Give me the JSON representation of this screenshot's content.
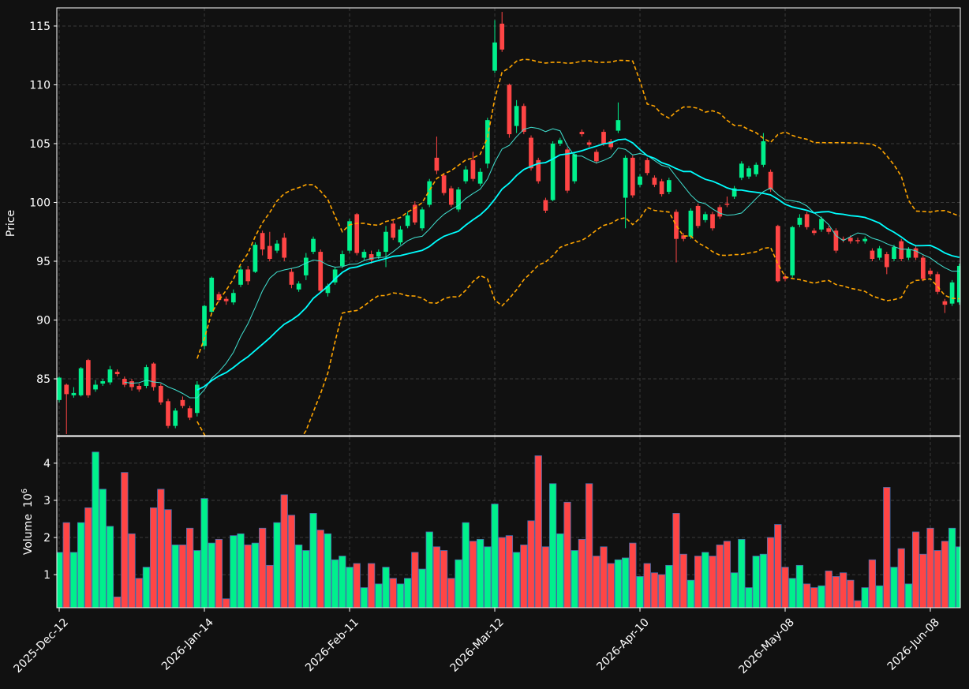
{
  "chart_data": {
    "type": "candlestick",
    "up_color": "#00f08c",
    "down_color": "#ff4545",
    "ylabel": "Price",
    "volume_label": "Volume",
    "volume_scale": {
      "base": "10",
      "exponent": "6"
    },
    "xlim": [
      -0.33,
      124.13
    ],
    "xticks": [
      {
        "value": 0,
        "label": "2025-Dec-12"
      },
      {
        "value": 20,
        "label": "2026-Jan-14"
      },
      {
        "value": 40,
        "label": "2026-Feb-11"
      },
      {
        "value": 60,
        "label": "2026-Mar-12"
      },
      {
        "value": 80,
        "label": "2026-Apr-10"
      },
      {
        "value": 100,
        "label": "2026-May-08"
      },
      {
        "value": 120,
        "label": "2026-Jun-08"
      }
    ],
    "ylim": [
      80.17,
      116.54
    ],
    "yticks": [
      85,
      90,
      95,
      100,
      105,
      110,
      115
    ],
    "volume_ylim": [
      0.11,
      4.72
    ],
    "volume_yticks": [
      1,
      2,
      3,
      4
    ],
    "grid": true,
    "indicators": {
      "moving_averages": [
        {
          "window": 10,
          "color": "#40e0d0"
        },
        {
          "window": 20,
          "color": "#00ffff"
        }
      ],
      "bollinger": {
        "window": 20,
        "std": 2,
        "color": "#ffa500"
      }
    },
    "open": [
      83.2,
      84.5,
      83.6,
      83.6,
      86.6,
      84.1,
      84.6,
      84.7,
      85.6,
      85.0,
      84.8,
      84.4,
      84.4,
      86.3,
      84.4,
      83.1,
      81.0,
      83.2,
      82.5,
      82.1,
      87.8,
      90.7,
      92.2,
      91.8,
      91.5,
      93.0,
      94.3,
      94.1,
      97.4,
      96.3,
      95.9,
      97.0,
      94.1,
      92.6,
      93.8,
      95.8,
      95.8,
      92.3,
      93.2,
      94.6,
      95.9,
      99.0,
      95.3,
      95.6,
      95.4,
      95.8,
      98.2,
      96.6,
      98.0,
      99.8,
      97.8,
      99.8,
      103.8,
      102.3,
      101.2,
      99.4,
      101.8,
      103.6,
      101.6,
      103.3,
      111.2,
      115.2,
      110.0,
      106.5,
      108.2,
      105.5,
      103.6,
      100.2,
      100.2,
      105.0,
      104.5,
      101.8,
      106.0,
      105.1,
      104.3,
      106.0,
      105.2,
      106.1,
      100.4,
      103.8,
      101.5,
      103.6,
      102.1,
      101.8,
      100.9,
      99.2,
      97.2,
      97.1,
      99.7,
      98.5,
      99.0,
      99.6,
      99.9,
      100.5,
      102.1,
      102.2,
      102.4,
      103.2,
      102.6,
      98.0,
      93.7,
      93.8,
      98.1,
      99.0,
      97.6,
      97.7,
      97.8,
      97.6,
      96.9,
      97.0,
      96.8,
      96.7,
      95.9,
      95.3,
      95.6,
      95.2,
      96.7,
      95.3,
      96.1,
      95.3,
      94.2,
      93.9,
      91.6,
      91.4,
      91.5
    ],
    "high": [
      85.2,
      84.6,
      84.3,
      86.0,
      86.7,
      84.9,
      85.0,
      86.1,
      85.8,
      85.2,
      85.0,
      84.6,
      86.2,
      86.4,
      84.6,
      83.3,
      82.5,
      83.5,
      82.7,
      84.8,
      91.3,
      93.7,
      92.4,
      92.0,
      92.6,
      94.6,
      94.6,
      96.6,
      97.6,
      97.5,
      96.8,
      97.4,
      94.4,
      93.3,
      95.7,
      97.1,
      96.0,
      93.1,
      94.5,
      95.9,
      98.6,
      99.1,
      96.0,
      95.9,
      96.0,
      98.0,
      98.5,
      98.0,
      99.2,
      100.1,
      99.6,
      102.0,
      105.6,
      102.5,
      101.4,
      101.3,
      103.1,
      104.3,
      102.9,
      107.2,
      115.5,
      116.2,
      110.1,
      108.7,
      108.4,
      105.7,
      103.8,
      100.4,
      105.2,
      105.5,
      104.7,
      104.3,
      106.2,
      105.3,
      104.5,
      106.2,
      105.4,
      108.5,
      104.0,
      104.0,
      102.4,
      103.8,
      102.3,
      102.0,
      102.1,
      99.4,
      97.4,
      99.5,
      99.9,
      99.2,
      99.2,
      99.8,
      100.5,
      101.4,
      103.5,
      103.1,
      103.4,
      105.9,
      102.8,
      98.1,
      93.9,
      98.0,
      99.0,
      99.2,
      97.8,
      98.8,
      98.0,
      97.8,
      97.1,
      97.2,
      97.0,
      97.1,
      96.1,
      96.3,
      95.8,
      96.4,
      96.9,
      96.2,
      96.3,
      95.5,
      94.4,
      94.1,
      91.8,
      93.4,
      94.8
    ],
    "low": [
      83.0,
      80.3,
      83.4,
      83.5,
      83.4,
      83.9,
      84.4,
      84.5,
      85.2,
      84.3,
      84.0,
      83.9,
      84.2,
      84.0,
      82.8,
      80.8,
      80.8,
      82.5,
      81.5,
      81.8,
      87.5,
      90.5,
      91.5,
      91.3,
      91.3,
      92.8,
      93.0,
      94.0,
      95.5,
      95.0,
      95.7,
      95.0,
      92.7,
      92.4,
      93.4,
      95.6,
      92.3,
      92.0,
      93.0,
      94.4,
      95.7,
      95.5,
      95.1,
      94.8,
      95.2,
      94.5,
      96.8,
      96.4,
      97.8,
      98.1,
      97.6,
      99.6,
      102.4,
      100.6,
      99.6,
      99.2,
      101.6,
      101.8,
      101.4,
      102.9,
      111.0,
      112.8,
      105.5,
      105.9,
      105.8,
      102.7,
      101.6,
      99.1,
      100.1,
      104.8,
      100.8,
      101.6,
      105.6,
      104.7,
      103.3,
      104.8,
      104.5,
      105.9,
      97.8,
      100.4,
      101.3,
      102.3,
      101.3,
      100.5,
      100.7,
      94.9,
      96.7,
      96.9,
      97.8,
      98.3,
      97.6,
      98.6,
      99.6,
      100.3,
      101.9,
      102.0,
      102.2,
      103.0,
      100.9,
      93.2,
      93.3,
      93.6,
      97.9,
      97.7,
      97.2,
      97.5,
      97.3,
      95.7,
      96.6,
      96.5,
      96.5,
      96.5,
      95.0,
      95.1,
      93.9,
      95.0,
      95.0,
      95.1,
      95.1,
      93.3,
      93.7,
      92.2,
      90.6,
      91.2,
      91.3
    ],
    "close": [
      85.1,
      83.7,
      83.8,
      85.9,
      83.6,
      84.5,
      84.8,
      85.8,
      85.4,
      84.5,
      84.3,
      84.1,
      86.0,
      84.3,
      83.0,
      81.0,
      82.3,
      82.7,
      81.7,
      84.5,
      91.2,
      93.6,
      91.7,
      91.6,
      92.3,
      94.3,
      93.3,
      96.4,
      96.0,
      95.2,
      96.5,
      95.3,
      93.0,
      93.1,
      95.3,
      96.9,
      92.5,
      92.9,
      94.3,
      95.6,
      98.4,
      95.7,
      95.8,
      95.1,
      95.8,
      97.5,
      97.0,
      97.7,
      98.9,
      98.3,
      99.4,
      101.8,
      102.7,
      100.8,
      99.8,
      101.1,
      102.8,
      102.0,
      102.6,
      107.0,
      113.6,
      113.0,
      105.8,
      108.2,
      106.0,
      102.9,
      101.8,
      99.3,
      105.0,
      105.3,
      101.0,
      104.1,
      105.8,
      104.9,
      103.5,
      105.0,
      104.7,
      107.0,
      103.8,
      100.6,
      102.2,
      102.5,
      101.5,
      100.7,
      101.9,
      96.9,
      96.9,
      99.3,
      98.0,
      99.0,
      97.8,
      98.8,
      99.8,
      101.2,
      103.3,
      102.9,
      103.2,
      105.2,
      101.1,
      93.3,
      93.5,
      97.9,
      98.7,
      97.9,
      97.4,
      98.6,
      97.5,
      95.9,
      96.8,
      96.7,
      96.7,
      96.9,
      95.2,
      96.1,
      94.5,
      96.2,
      95.2,
      96.0,
      95.3,
      93.5,
      93.9,
      92.4,
      91.3,
      93.2,
      94.6
    ],
    "volume": [
      1.6,
      2.4,
      1.6,
      2.4,
      2.8,
      4.3,
      3.3,
      2.3,
      0.4,
      3.75,
      2.1,
      0.9,
      1.2,
      2.8,
      3.3,
      2.75,
      1.8,
      1.8,
      2.25,
      1.65,
      3.05,
      1.85,
      1.95,
      0.35,
      2.05,
      2.1,
      1.8,
      1.85,
      2.25,
      1.25,
      2.4,
      3.15,
      2.6,
      1.8,
      1.65,
      2.65,
      2.2,
      2.1,
      1.4,
      1.5,
      1.2,
      1.3,
      0.65,
      1.3,
      0.75,
      1.2,
      0.9,
      0.75,
      0.9,
      1.6,
      1.15,
      2.15,
      1.75,
      1.65,
      0.9,
      1.4,
      2.4,
      1.9,
      1.95,
      1.75,
      2.9,
      2.0,
      2.05,
      1.6,
      1.8,
      2.45,
      4.2,
      1.75,
      3.45,
      2.1,
      2.95,
      1.65,
      1.95,
      3.45,
      1.5,
      1.75,
      1.3,
      1.4,
      1.45,
      1.85,
      0.95,
      1.3,
      1.05,
      1.0,
      1.25,
      2.65,
      1.55,
      0.85,
      1.5,
      1.6,
      1.5,
      1.8,
      1.9,
      1.05,
      1.95,
      0.65,
      1.5,
      1.55,
      2.0,
      2.35,
      1.2,
      0.9,
      1.25,
      0.75,
      0.65,
      0.7,
      1.1,
      0.95,
      1.05,
      0.85,
      0.3,
      0.65,
      1.4,
      0.7,
      3.35,
      1.2,
      1.7,
      0.75,
      2.15,
      1.55,
      2.25,
      1.65,
      1.9,
      2.25,
      1.75
    ]
  }
}
